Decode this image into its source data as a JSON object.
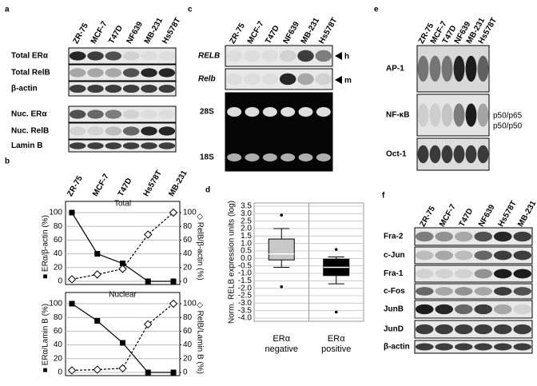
{
  "panels": {
    "a": {
      "label": "a",
      "lanes": [
        "ZR-75",
        "MCF-7",
        "T47D",
        "NF639",
        "MB-231",
        "Hs578T"
      ],
      "rows": [
        "Total ERα",
        "Total RelB",
        "β-actin",
        "Nuc. ERα",
        "Nuc. RelB",
        "Lamin B"
      ]
    },
    "b": {
      "label": "b"
    },
    "c": {
      "label": "c",
      "lanes": [
        "ZR-75",
        "MCF-7",
        "T47D",
        "NF639",
        "MB-231",
        "Hs578T"
      ],
      "rows": [
        "RELB",
        "Relb",
        "28S",
        "18S"
      ],
      "markers": [
        "h",
        "m"
      ]
    },
    "d": {
      "label": "d"
    },
    "e": {
      "label": "e",
      "lanes": [
        "ZR-75",
        "MCF-7",
        "T47D",
        "NF639",
        "MB-231",
        "Hs578T"
      ],
      "rows": [
        "AP-1",
        "NF-κB",
        "Oct-1"
      ],
      "bands": [
        "p50/p65",
        "p50/p50"
      ]
    },
    "f": {
      "label": "f",
      "lanes": [
        "ZR-75",
        "MCF-7",
        "T47D",
        "NF639",
        "Hs578T",
        "MB-231"
      ],
      "rows": [
        "Fra-2",
        "c-Jun",
        "Fra-1",
        "c-Fos",
        "JunB",
        "JunD",
        "β-actin"
      ]
    }
  },
  "chart_data": [
    {
      "type": "line",
      "title": "Total",
      "categories": [
        "ZR-75",
        "MCF-7",
        "T47D",
        "Hs578T",
        "MB-231"
      ],
      "ylabel": "■ ERα/β-actin (%)",
      "y2label": "◇ RelB/β-actin (%)",
      "ylim": [
        0,
        100
      ],
      "yticks": [
        0,
        20,
        40,
        60,
        80,
        100
      ],
      "y2lim": [
        0,
        100
      ],
      "y2ticks": [
        0,
        20,
        40,
        60,
        80,
        100
      ],
      "grid": true,
      "series": [
        {
          "color": "#000000",
          "marker": "square",
          "line_style": "solid",
          "values": [
            100,
            40,
            26,
            0,
            0
          ]
        },
        {
          "color": "#000000",
          "marker": "diamond",
          "line_style": "dashed",
          "axis": "y2",
          "values": [
            3,
            10,
            18,
            68,
            100
          ]
        }
      ]
    },
    {
      "type": "line",
      "title": "Nuclear",
      "ylabel": "■ ERα/Lamin B (%)",
      "y2label": "◇ RelB/Lamin B (%)",
      "ylim": [
        0,
        100
      ],
      "yticks": [
        0,
        20,
        40,
        60,
        80,
        100
      ],
      "y2lim": [
        0,
        100
      ],
      "y2ticks": [
        0,
        20,
        40,
        60,
        80,
        100
      ],
      "grid": true,
      "series": [
        {
          "color": "#000000",
          "marker": "square",
          "line_style": "solid",
          "values": [
            100,
            75,
            43,
            0,
            0
          ]
        },
        {
          "color": "#000000",
          "marker": "diamond",
          "line_style": "dashed",
          "axis": "y2",
          "values": [
            3,
            4,
            6,
            70,
            100
          ]
        }
      ]
    },
    {
      "type": "box",
      "ylabel": "Norm. RELB expression units (log)",
      "categories": [
        "ERα negative",
        "ERα positive"
      ],
      "ylim": [
        -4.0,
        3.5
      ],
      "grid": true,
      "yticks": [
        3.5,
        {
          "value": 3,
          "label": "3.0"
        },
        2.5,
        {
          "value": 2,
          "label": "2.0"
        },
        1.5,
        {
          "value": 1,
          "label": "1.0"
        },
        0.5,
        {
          "value": 0,
          "label": "0.0"
        },
        -0.5,
        {
          "value": -1,
          "label": "-1.0"
        },
        -1.5,
        {
          "value": -2,
          "label": "-2.0"
        },
        -2.5,
        {
          "value": -3,
          "label": "-3.0"
        },
        -3.5,
        {
          "value": -4,
          "label": "-4.0"
        }
      ],
      "boxes": [
        {
          "color": "#c8c8c8",
          "whisker_low": -0.6,
          "q1": -0.1,
          "median": 0.3,
          "q3": 1.3,
          "whisker_high": 2.0,
          "outliers": [
            2.9,
            -1.9
          ]
        },
        {
          "color": "#000000",
          "whisker_low": -1.7,
          "q1": -1.15,
          "median": -0.6,
          "q3": -0.05,
          "whisker_high": 0.1,
          "outliers": [
            0.6,
            -3.6
          ]
        }
      ]
    }
  ]
}
